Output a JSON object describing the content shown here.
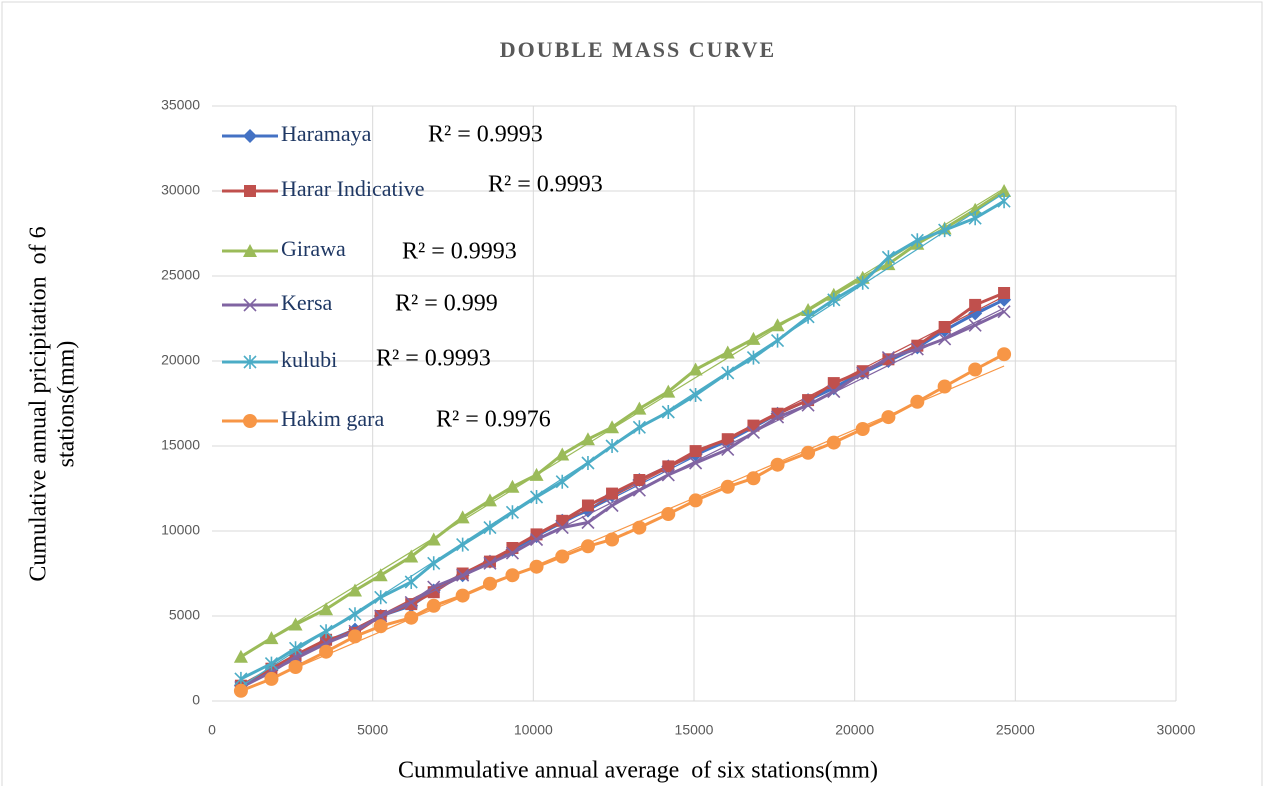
{
  "chart_data": {
    "type": "line",
    "title": "DOUBLE MASS CURVE",
    "xlabel": "Cummulative annual average  of six stations(mm)",
    "ylabel": [
      "Cumulative annual pricipitation  of 6",
      "stations(mm)"
    ],
    "x": [
      900,
      1850,
      2600,
      3550,
      4450,
      5250,
      6200,
      6900,
      7800,
      8650,
      9350,
      10100,
      10900,
      11700,
      12450,
      13300,
      14200,
      15050,
      16050,
      16850,
      17600,
      18550,
      19350,
      20250,
      21050,
      21950,
      22800,
      23750,
      24650
    ],
    "series": [
      {
        "name": "Haramaya",
        "color": "#4472c4",
        "marker": "diamond",
        "trendline_label": "R² = 0.9993",
        "values": [
          900,
          1800,
          2700,
          3500,
          4200,
          5000,
          5600,
          6500,
          7400,
          8200,
          8900,
          9700,
          10600,
          11200,
          12100,
          13000,
          13800,
          14500,
          15300,
          16100,
          16900,
          17700,
          18400,
          19300,
          20000,
          20800,
          21800,
          22800,
          23600
        ]
      },
      {
        "name": "Harar Indicative",
        "color": "#c0504d",
        "marker": "square",
        "trendline_label": "R² = 0.9993",
        "values": [
          900,
          1900,
          2700,
          3600,
          4000,
          5000,
          5700,
          6400,
          7500,
          8200,
          9000,
          9800,
          10600,
          11500,
          12200,
          13000,
          13800,
          14700,
          15400,
          16200,
          16900,
          17700,
          18700,
          19400,
          20100,
          20900,
          22000,
          23300,
          24000
        ]
      },
      {
        "name": "Girawa",
        "color": "#9bbb59",
        "marker": "triangle",
        "trendline_label": "R² = 0.9993",
        "values": [
          2600,
          3700,
          4500,
          5400,
          6500,
          7400,
          8500,
          9500,
          10800,
          11800,
          12600,
          13300,
          14500,
          15400,
          16100,
          17200,
          18200,
          19500,
          20500,
          21300,
          22100,
          23000,
          23900,
          24900,
          25700,
          26900,
          27800,
          28900,
          30000
        ]
      },
      {
        "name": "Kersa",
        "color": "#8064a2",
        "marker": "x",
        "trendline_label": "R² = 0.999",
        "values": [
          800,
          1700,
          2600,
          3400,
          4100,
          5000,
          5800,
          6700,
          7400,
          8100,
          8700,
          9500,
          10200,
          10500,
          11500,
          12400,
          13300,
          14000,
          14800,
          15800,
          16700,
          17400,
          18200,
          19300,
          20200,
          20700,
          21300,
          22100,
          22900
        ]
      },
      {
        "name": "kulubi",
        "color": "#4bacc6",
        "marker": "star",
        "trendline_label": "R² = 0.9993",
        "values": [
          1300,
          2200,
          3100,
          4100,
          5100,
          6100,
          7000,
          8100,
          9200,
          10200,
          11100,
          12000,
          12900,
          14000,
          15000,
          16100,
          17000,
          18000,
          19300,
          20200,
          21200,
          22600,
          23600,
          24600,
          26100,
          27100,
          27700,
          28400,
          29400
        ]
      },
      {
        "name": "Hakim gara",
        "color": "#f79646",
        "marker": "circle",
        "trendline_label": "R² = 0.9976",
        "values": [
          600,
          1300,
          2000,
          2900,
          3800,
          4400,
          4900,
          5600,
          6200,
          6900,
          7400,
          7900,
          8500,
          9100,
          9500,
          10200,
          11000,
          11800,
          12600,
          13100,
          13900,
          14600,
          15200,
          16000,
          16700,
          17600,
          18500,
          19500,
          20400
        ]
      }
    ],
    "xlim": [
      0,
      30000
    ],
    "xticks": [
      0,
      5000,
      10000,
      15000,
      20000,
      25000,
      30000
    ],
    "ylim": [
      0,
      35000
    ],
    "yticks": [
      0,
      5000,
      10000,
      15000,
      20000,
      25000,
      30000,
      35000
    ],
    "grid": true,
    "trendline": "linear",
    "legend": "upper left"
  }
}
